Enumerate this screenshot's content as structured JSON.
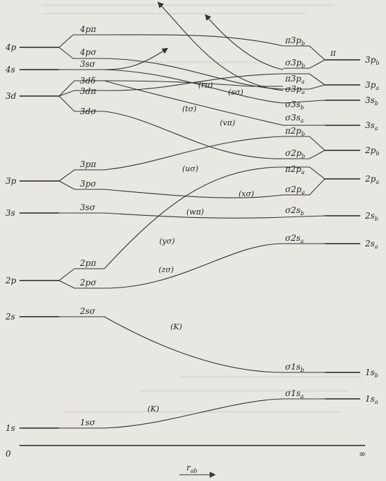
{
  "diagram": {
    "axis": {
      "left": "0",
      "right": "∞",
      "arrow_label": "r",
      "arrow_sub": "ab"
    },
    "united_atom_levels": [
      {
        "id": "4p",
        "n": "4",
        "l": "p"
      },
      {
        "id": "4s",
        "n": "4",
        "l": "s"
      },
      {
        "id": "3d",
        "n": "3",
        "l": "d"
      },
      {
        "id": "3p",
        "n": "3",
        "l": "p"
      },
      {
        "id": "3s",
        "n": "3",
        "l": "s"
      },
      {
        "id": "2p",
        "n": "2",
        "l": "p"
      },
      {
        "id": "2s",
        "n": "2",
        "l": "s"
      },
      {
        "id": "1s",
        "n": "1",
        "l": "s"
      }
    ],
    "ua_orbitals": [
      {
        "id": "4ppi",
        "text": "4pπ"
      },
      {
        "id": "4psig",
        "text": "4pσ"
      },
      {
        "id": "3ssig_top",
        "text": "3sσ"
      },
      {
        "id": "3ddel",
        "text": "3dδ"
      },
      {
        "id": "3dpi",
        "text": "3dπ"
      },
      {
        "id": "3dsig",
        "text": "3dσ"
      },
      {
        "id": "3ppi",
        "text": "3pπ"
      },
      {
        "id": "3psig",
        "text": "3pσ"
      },
      {
        "id": "3ssig",
        "text": "3sσ"
      },
      {
        "id": "2ppi",
        "text": "2pπ"
      },
      {
        "id": "2psig",
        "text": "2pσ"
      },
      {
        "id": "2ssig",
        "text": "2sσ"
      },
      {
        "id": "1ssig",
        "text": "1sσ"
      }
    ],
    "sa_orbitals": [
      {
        "id": "pi3pb",
        "main": "π3p",
        "sub": "b"
      },
      {
        "id": "sig3pb",
        "main": "σ3p",
        "sub": "b"
      },
      {
        "id": "pi3pa",
        "main": "π3p",
        "sub": "a"
      },
      {
        "id": "sig3pa",
        "main": "σ3p",
        "sub": "a"
      },
      {
        "id": "sig3sb",
        "main": "σ3s",
        "sub": "b"
      },
      {
        "id": "sig3sa",
        "main": "σ3s",
        "sub": "a"
      },
      {
        "id": "pi2pb",
        "main": "π2p",
        "sub": "b"
      },
      {
        "id": "sig2pb",
        "main": "σ2p",
        "sub": "b"
      },
      {
        "id": "pi2pa",
        "main": "π2p",
        "sub": "a"
      },
      {
        "id": "sig2pa",
        "main": "σ2p",
        "sub": "a"
      },
      {
        "id": "sig2sb",
        "main": "σ2s",
        "sub": "b"
      },
      {
        "id": "sig2sa",
        "main": "σ2s",
        "sub": "a"
      },
      {
        "id": "sig1sb",
        "main": "σ1s",
        "sub": "b"
      },
      {
        "id": "sig1sa",
        "main": "σ1s",
        "sub": "a"
      },
      {
        "id": "pi_lone",
        "main": "π",
        "sub": ""
      }
    ],
    "separated_atom_levels": [
      {
        "id": "3pb",
        "main": "3p",
        "sub": "b"
      },
      {
        "id": "3pa",
        "main": "3p",
        "sub": "a"
      },
      {
        "id": "3sb",
        "main": "3s",
        "sub": "b"
      },
      {
        "id": "3sa",
        "main": "3s",
        "sub": "a"
      },
      {
        "id": "2pb",
        "main": "2p",
        "sub": "b"
      },
      {
        "id": "2pa",
        "main": "2p",
        "sub": "a"
      },
      {
        "id": "2sb",
        "main": "2s",
        "sub": "b"
      },
      {
        "id": "2sa",
        "main": "2s",
        "sub": "a"
      },
      {
        "id": "1sb",
        "main": "1s",
        "sub": "b"
      },
      {
        "id": "1sa",
        "main": "1s",
        "sub": "a"
      }
    ],
    "crossing_annotations": [
      {
        "id": "rpi",
        "text": "(rπ)"
      },
      {
        "id": "ssig",
        "text": "(sσ)"
      },
      {
        "id": "tsig",
        "text": "(tσ)"
      },
      {
        "id": "vpi",
        "text": "(vπ)"
      },
      {
        "id": "usig",
        "text": "(uσ)"
      },
      {
        "id": "xsig",
        "text": "(xσ)"
      },
      {
        "id": "wpi",
        "text": "(wπ)"
      },
      {
        "id": "ysig",
        "text": "(yσ)"
      },
      {
        "id": "zsig",
        "text": "(zσ)"
      },
      {
        "id": "K1",
        "text": "(K)"
      },
      {
        "id": "K2",
        "text": "(K)"
      }
    ]
  }
}
